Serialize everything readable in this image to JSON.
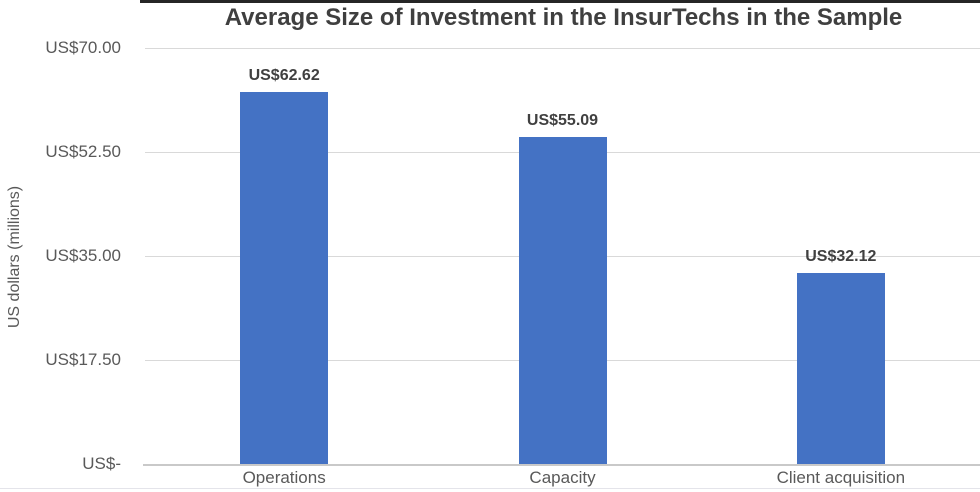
{
  "chart": {
    "title": "Average Size of Investment in the InsurTechs in the Sample",
    "y_axis_title": "US dollars (millions)",
    "colors": {
      "bar": "#4472C4",
      "gridline": "#D9D9D9",
      "axis_line": "#C9C9C9",
      "title_text": "#3F3F3F",
      "tick_text": "#595959",
      "data_label_text": "#404040",
      "top_border": "#262626"
    }
  },
  "chart_data": {
    "type": "bar",
    "title": "Average Size of Investment in the InsurTechs in the Sample",
    "categories": [
      "Operations",
      "Capacity",
      "Client acquisition"
    ],
    "values": [
      62.62,
      55.09,
      32.12
    ],
    "data_labels": [
      "US$62.62",
      "US$55.09",
      "US$32.12"
    ],
    "xlabel": "",
    "ylabel": "US dollars (millions)",
    "ylim": [
      0,
      70
    ],
    "yticks": [
      {
        "value": 70,
        "label": "US$70.00"
      },
      {
        "value": 52.5,
        "label": "US$52.50"
      },
      {
        "value": 35,
        "label": "US$35.00"
      },
      {
        "value": 17.5,
        "label": "US$17.50"
      },
      {
        "value": 0,
        "label": "US$-"
      }
    ],
    "grid": true,
    "legend": false
  }
}
